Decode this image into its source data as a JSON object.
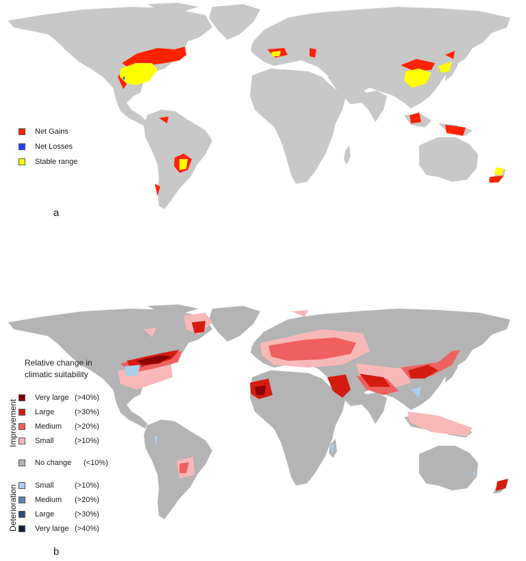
{
  "panel_a": {
    "letter": "a",
    "legend": [
      {
        "label": "Net Gains",
        "color": "#ff2200"
      },
      {
        "label": "Net Losses",
        "color": "#1a44ff"
      },
      {
        "label": "Stable range",
        "color": "#ffff00"
      }
    ]
  },
  "panel_b": {
    "letter": "b",
    "legend_title_line1": "Relative change in",
    "legend_title_line2": "climatic suitability",
    "group_improvement": "Improvement",
    "group_deterioration": "Deterioration",
    "legend": [
      {
        "label": "Very large",
        "pct": "(>40%)",
        "color": "#8b0000"
      },
      {
        "label": "Large",
        "pct": "(>30%)",
        "color": "#d41c10"
      },
      {
        "label": "Medium",
        "pct": "(>20%)",
        "color": "#f06060"
      },
      {
        "label": "Small",
        "pct": "(>10%)",
        "color": "#f8b8b8"
      },
      {
        "label": "No change",
        "pct": "(<10%)",
        "color": "#b4b4b4"
      },
      {
        "label": "Small",
        "pct": "(>10%)",
        "color": "#a8cfee"
      },
      {
        "label": "Medium",
        "pct": "(>20%)",
        "color": "#5a82b8"
      },
      {
        "label": "Large",
        "pct": "(>30%)",
        "color": "#2e4a78"
      },
      {
        "label": "Very large",
        "pct": "(>40%)",
        "color": "#0f2040"
      }
    ]
  },
  "colors": {
    "land": "#c8c8c8",
    "background": "#ffffff"
  }
}
